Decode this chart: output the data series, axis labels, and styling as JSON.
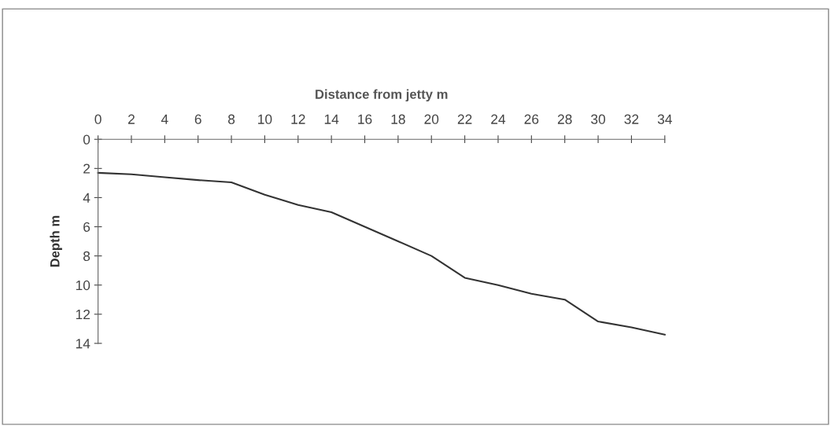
{
  "chart_data": {
    "type": "line",
    "xlabel": "Distance from jetty m",
    "ylabel": "Depth m",
    "x": [
      0,
      2,
      4,
      6,
      8,
      10,
      12,
      14,
      16,
      18,
      20,
      22,
      24,
      26,
      28,
      30,
      32,
      34
    ],
    "series": [
      {
        "color": "#333333",
        "values": [
          2.3,
          2.4,
          2.6,
          2.8,
          2.95,
          3.8,
          4.5,
          5.0,
          6.0,
          7.0,
          8.0,
          9.5,
          10.0,
          10.6,
          11.0,
          12.5,
          12.9,
          13.4
        ]
      }
    ],
    "xlim": [
      0,
      34
    ],
    "xticks": [
      0,
      2,
      4,
      6,
      8,
      10,
      12,
      14,
      16,
      18,
      20,
      22,
      24,
      26,
      28,
      30,
      32,
      34
    ],
    "ylim": [
      14,
      0
    ],
    "yticks": [
      0,
      2,
      4,
      6,
      8,
      10,
      12,
      14
    ],
    "grid": false,
    "legend": false,
    "marker": "none",
    "line_style": "solid"
  }
}
